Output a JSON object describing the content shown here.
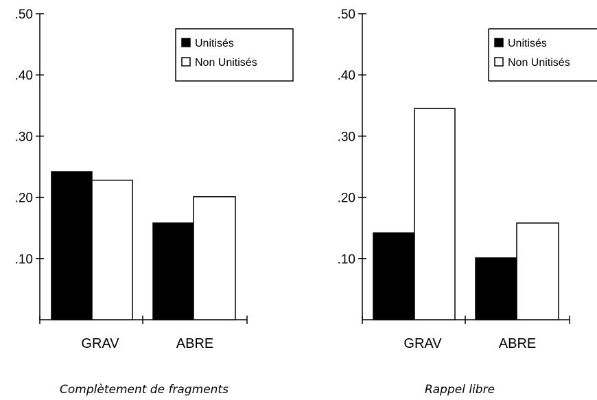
{
  "chart_data": [
    {
      "type": "bar",
      "title": "Complètement de fragments",
      "categories": [
        "GRAV",
        "ABRE"
      ],
      "series": [
        {
          "name": "Unitisés",
          "values": [
            0.242,
            0.158
          ]
        },
        {
          "name": "Non Unitisés",
          "values": [
            0.228,
            0.201
          ]
        }
      ],
      "yticks": [
        ".10",
        ".20",
        ".30",
        ".40",
        ".50"
      ],
      "ylim": [
        0,
        0.5
      ],
      "legend": "top-right",
      "grid": false
    },
    {
      "type": "bar",
      "title": "Rappel libre",
      "categories": [
        "GRAV",
        "ABRE"
      ],
      "series": [
        {
          "name": "Unitisés",
          "values": [
            0.142,
            0.101
          ]
        },
        {
          "name": "Non Unitisés",
          "values": [
            0.345,
            0.158
          ]
        }
      ],
      "yticks": [
        ".10",
        ".20",
        ".30",
        ".40",
        ".50"
      ],
      "ylim": [
        0,
        0.5
      ],
      "legend": "top-right",
      "grid": false
    }
  ],
  "colors": {
    "Unitisés": "#000000",
    "Non Unitisés": "#ffffff"
  }
}
